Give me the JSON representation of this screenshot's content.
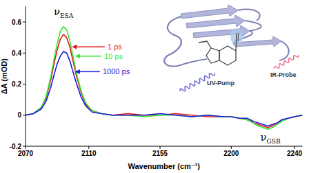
{
  "chart_data": {
    "type": "line",
    "x_label": "Wavenumber (cm⁻¹)",
    "y_label": "ΔA (mOD)",
    "x": [
      2070,
      2075,
      2080,
      2083,
      2086,
      2088,
      2090,
      2092,
      2094,
      2096,
      2098,
      2100,
      2102,
      2105,
      2108,
      2112,
      2118,
      2125,
      2135,
      2145,
      2155,
      2165,
      2175,
      2185,
      2195,
      2200,
      2205,
      2210,
      2214,
      2217,
      2220,
      2223,
      2226,
      2229,
      2232,
      2236,
      2240,
      2245
    ],
    "xlim": [
      2070,
      2245
    ],
    "xticks": [
      2070,
      2110,
      2155,
      2200,
      2240
    ],
    "ylim": [
      -0.2,
      0.7
    ],
    "yticks": [
      -0.2,
      0,
      0.2,
      0.4,
      0.6
    ],
    "grid": false,
    "series": [
      {
        "name": "1 ps",
        "color": "#e8141c",
        "values": [
          0.0,
          0.01,
          0.05,
          0.11,
          0.23,
          0.33,
          0.42,
          0.49,
          0.52,
          0.5,
          0.44,
          0.35,
          0.26,
          0.15,
          0.07,
          0.03,
          0.01,
          0.0,
          0.01,
          0.0,
          0.0,
          0.01,
          0.0,
          -0.01,
          -0.01,
          -0.01,
          -0.02,
          -0.03,
          -0.05,
          -0.06,
          -0.07,
          -0.08,
          -0.07,
          -0.05,
          -0.03,
          -0.02,
          -0.01,
          0.0
        ]
      },
      {
        "name": "10 ps",
        "color": "#2ee82e",
        "values": [
          0.0,
          0.01,
          0.05,
          0.12,
          0.25,
          0.36,
          0.46,
          0.54,
          0.57,
          0.55,
          0.48,
          0.38,
          0.28,
          0.16,
          0.08,
          0.03,
          0.01,
          0.0,
          0.0,
          -0.01,
          0.0,
          0.0,
          -0.01,
          0.0,
          -0.01,
          -0.01,
          -0.02,
          -0.03,
          -0.05,
          -0.07,
          -0.08,
          -0.09,
          -0.08,
          -0.06,
          -0.04,
          -0.02,
          -0.01,
          0.0
        ]
      },
      {
        "name": "1000 ps",
        "color": "#1a1ad8",
        "values": [
          0.0,
          0.01,
          0.04,
          0.09,
          0.18,
          0.26,
          0.33,
          0.38,
          0.41,
          0.4,
          0.35,
          0.28,
          0.21,
          0.12,
          0.06,
          0.02,
          0.01,
          0.0,
          0.0,
          0.0,
          0.01,
          0.0,
          -0.01,
          0.0,
          -0.01,
          -0.01,
          -0.02,
          -0.02,
          -0.04,
          -0.05,
          -0.06,
          -0.07,
          -0.06,
          -0.05,
          -0.03,
          -0.02,
          -0.01,
          0.0
        ]
      }
    ],
    "annotations": [
      {
        "text": "ν",
        "subscript": "ESA"
      },
      {
        "text": "ν",
        "subscript": "GSB"
      }
    ],
    "inset_labels": [
      "UV-Pump",
      "IR-Probe"
    ]
  }
}
